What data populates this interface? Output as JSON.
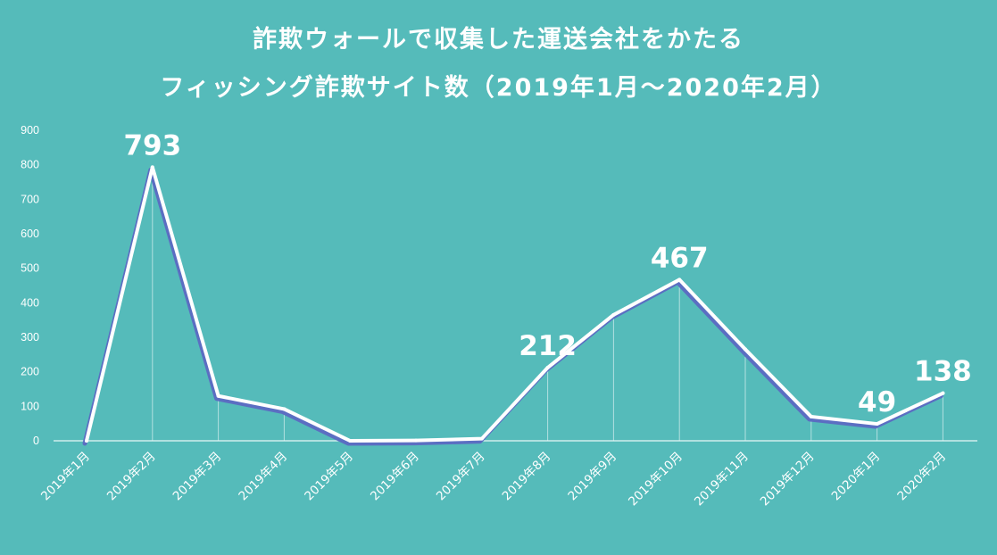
{
  "colors": {
    "background": "#55BBBA",
    "line_outer": "#FFFFFF",
    "line_inner": "#5B6EC2",
    "axis": "#E6F5F5",
    "text": "#FFFFFF",
    "drop_line": "#FFFFFF"
  },
  "chart_data": {
    "type": "line",
    "title_lines": [
      "詐欺ウォールで収集した運送会社をかたる",
      "フィッシング詐欺サイト数（2019年1月～2020年2月）"
    ],
    "categories": [
      "2019年1月",
      "2019年2月",
      "2019年3月",
      "2019年4月",
      "2019年5月",
      "2019年6月",
      "2019年7月",
      "2019年8月",
      "2019年9月",
      "2019年10月",
      "2019年11月",
      "2019年12月",
      "2020年1月",
      "2020年2月"
    ],
    "series": [
      {
        "values": [
          0,
          793,
          130,
          92,
          0,
          1,
          6,
          212,
          365,
          467,
          265,
          70,
          49,
          138
        ]
      }
    ],
    "data_labels": [
      {
        "index": 1,
        "text": "793"
      },
      {
        "index": 7,
        "text": "212"
      },
      {
        "index": 9,
        "text": "467"
      },
      {
        "index": 12,
        "text": "49"
      },
      {
        "index": 13,
        "text": "138"
      }
    ],
    "yticks": [
      "0",
      "100",
      "200",
      "300",
      "400",
      "500",
      "600",
      "700",
      "800",
      "900"
    ],
    "ylim": [
      0,
      900
    ],
    "grid": false,
    "legend": "none"
  }
}
